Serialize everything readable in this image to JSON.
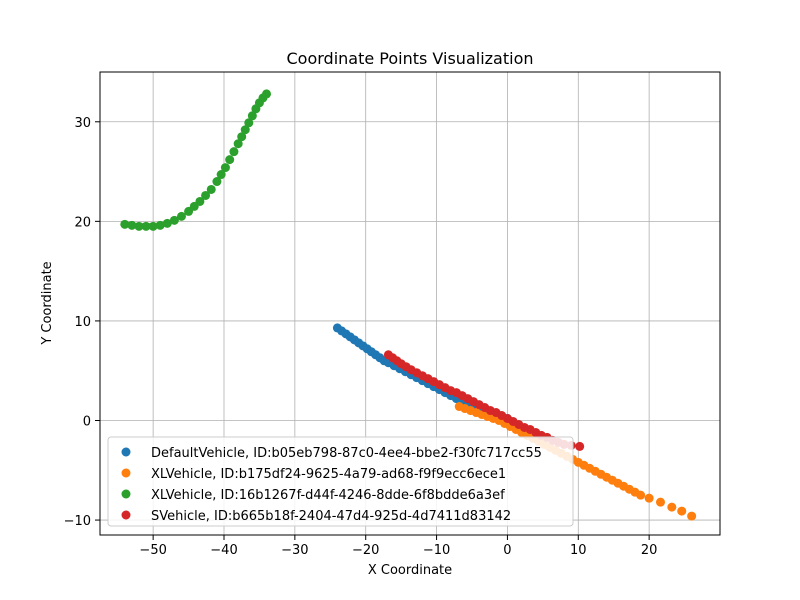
{
  "chart_data": {
    "type": "scatter",
    "title": "Coordinate Points Visualization",
    "xlabel": "X Coordinate",
    "ylabel": "Y Coordinate",
    "xlim": [
      -57.5,
      30
    ],
    "ylim": [
      -11.5,
      35
    ],
    "xticks": [
      -50,
      -40,
      -30,
      -20,
      -10,
      0,
      10,
      20
    ],
    "yticks": [
      -10,
      0,
      10,
      20,
      30
    ],
    "xtick_labels": [
      "−50",
      "−40",
      "−30",
      "−20",
      "−10",
      "0",
      "10",
      "20"
    ],
    "ytick_labels": [
      "−10",
      "0",
      "10",
      "20",
      "30"
    ],
    "grid": true,
    "legend_position": "lower-left",
    "series": [
      {
        "name": "DefaultVehicle, ID:b05eb798-87c0-4ee4-bbe2-f30fc717cc55",
        "color": "#1f77b4",
        "points": [
          [
            -24,
            9.3
          ],
          [
            -23.4,
            9.0
          ],
          [
            -22.8,
            8.7
          ],
          [
            -22.2,
            8.4
          ],
          [
            -21.6,
            8.1
          ],
          [
            -21.0,
            7.8
          ],
          [
            -20.4,
            7.5
          ],
          [
            -19.8,
            7.2
          ],
          [
            -19.2,
            6.9
          ],
          [
            -18.6,
            6.6
          ],
          [
            -18.0,
            6.3
          ],
          [
            -17.4,
            6.0
          ],
          [
            -16.8,
            5.8
          ],
          [
            -16.0,
            5.5
          ],
          [
            -15.2,
            5.2
          ],
          [
            -14.4,
            4.9
          ],
          [
            -13.6,
            4.6
          ],
          [
            -12.8,
            4.3
          ],
          [
            -12.0,
            4.0
          ],
          [
            -11.2,
            3.7
          ],
          [
            -10.4,
            3.4
          ],
          [
            -9.6,
            3.1
          ],
          [
            -8.8,
            2.8
          ],
          [
            -8.0,
            2.5
          ],
          [
            -7.2,
            2.2
          ],
          [
            -6.4,
            1.9
          ],
          [
            -5.6,
            1.6
          ],
          [
            -4.8,
            1.4
          ],
          [
            -4.0,
            1.1
          ],
          [
            -3.2,
            0.8
          ],
          [
            -2.4,
            0.6
          ],
          [
            -1.6,
            0.4
          ],
          [
            -0.8,
            0.3
          ],
          [
            0,
            0.2
          ]
        ]
      },
      {
        "name": "XLVehicle, ID:b175df24-9625-4a79-ad68-f9f9ecc6ece1",
        "color": "#ff7f0e",
        "points": [
          [
            -6.8,
            1.4
          ],
          [
            -6.0,
            1.2
          ],
          [
            -5.2,
            1.0
          ],
          [
            -4.4,
            0.8
          ],
          [
            -3.6,
            0.6
          ],
          [
            -2.8,
            0.4
          ],
          [
            -2.0,
            0.2
          ],
          [
            -1.2,
            0.0
          ],
          [
            -0.4,
            -0.3
          ],
          [
            0.4,
            -0.6
          ],
          [
            1.2,
            -0.9
          ],
          [
            2.0,
            -1.2
          ],
          [
            2.8,
            -1.5
          ],
          [
            3.6,
            -1.8
          ],
          [
            4.4,
            -2.1
          ],
          [
            5.2,
            -2.4
          ],
          [
            6.0,
            -2.7
          ],
          [
            6.8,
            -3.0
          ],
          [
            7.6,
            -3.3
          ],
          [
            8.4,
            -3.6
          ],
          [
            9.2,
            -3.9
          ],
          [
            10.0,
            -4.2
          ],
          [
            10.8,
            -4.5
          ],
          [
            11.6,
            -4.8
          ],
          [
            12.4,
            -5.1
          ],
          [
            13.2,
            -5.4
          ],
          [
            14.0,
            -5.7
          ],
          [
            14.8,
            -6.0
          ],
          [
            15.6,
            -6.3
          ],
          [
            16.4,
            -6.6
          ],
          [
            17.2,
            -6.9
          ],
          [
            18.0,
            -7.2
          ],
          [
            18.8,
            -7.5
          ],
          [
            20.0,
            -7.8
          ],
          [
            21.6,
            -8.2
          ],
          [
            23.2,
            -8.7
          ],
          [
            24.6,
            -9.1
          ],
          [
            26.0,
            -9.6
          ]
        ]
      },
      {
        "name": "XLVehicle, ID:16b1267f-d44f-4246-8dde-6f8bdde6a3ef",
        "color": "#2ca02c",
        "points": [
          [
            -54,
            19.7
          ],
          [
            -53,
            19.6
          ],
          [
            -52,
            19.5
          ],
          [
            -51,
            19.5
          ],
          [
            -50,
            19.5
          ],
          [
            -49,
            19.6
          ],
          [
            -48,
            19.8
          ],
          [
            -47,
            20.1
          ],
          [
            -46,
            20.5
          ],
          [
            -45,
            21.0
          ],
          [
            -44.2,
            21.5
          ],
          [
            -43.4,
            22.0
          ],
          [
            -42.6,
            22.6
          ],
          [
            -41.8,
            23.2
          ],
          [
            -41.0,
            24.0
          ],
          [
            -40.4,
            24.7
          ],
          [
            -39.8,
            25.4
          ],
          [
            -39.2,
            26.2
          ],
          [
            -38.6,
            27.0
          ],
          [
            -38.0,
            27.8
          ],
          [
            -37.5,
            28.5
          ],
          [
            -37.0,
            29.2
          ],
          [
            -36.5,
            29.9
          ],
          [
            -36.0,
            30.6
          ],
          [
            -35.5,
            31.3
          ],
          [
            -35.0,
            31.9
          ],
          [
            -34.5,
            32.4
          ],
          [
            -34.0,
            32.8
          ]
        ]
      },
      {
        "name": "SVehicle, ID:b665b18f-2404-47d4-925d-4d7411d83142",
        "color": "#d62728",
        "points": [
          [
            -16.8,
            6.6
          ],
          [
            -16.2,
            6.3
          ],
          [
            -15.6,
            6.0
          ],
          [
            -15.0,
            5.7
          ],
          [
            -14.3,
            5.4
          ],
          [
            -13.6,
            5.1
          ],
          [
            -12.8,
            4.8
          ],
          [
            -12.0,
            4.5
          ],
          [
            -11.2,
            4.2
          ],
          [
            -10.4,
            3.9
          ],
          [
            -9.6,
            3.6
          ],
          [
            -8.8,
            3.3
          ],
          [
            -8.0,
            3.0
          ],
          [
            -7.2,
            2.8
          ],
          [
            -6.4,
            2.5
          ],
          [
            -5.6,
            2.2
          ],
          [
            -4.8,
            1.9
          ],
          [
            -4.0,
            1.6
          ],
          [
            -3.2,
            1.3
          ],
          [
            -2.4,
            1.0
          ],
          [
            -1.6,
            0.8
          ],
          [
            -0.8,
            0.5
          ],
          [
            0,
            0.2
          ],
          [
            0.8,
            -0.1
          ],
          [
            1.6,
            -0.4
          ],
          [
            2.4,
            -0.7
          ],
          [
            3.2,
            -0.9
          ],
          [
            4.0,
            -1.2
          ],
          [
            4.8,
            -1.5
          ],
          [
            5.6,
            -1.7
          ],
          [
            6.4,
            -2.0
          ],
          [
            7.2,
            -2.2
          ],
          [
            8.0,
            -2.4
          ],
          [
            9.0,
            -2.5
          ],
          [
            10.2,
            -2.6
          ]
        ]
      }
    ]
  }
}
